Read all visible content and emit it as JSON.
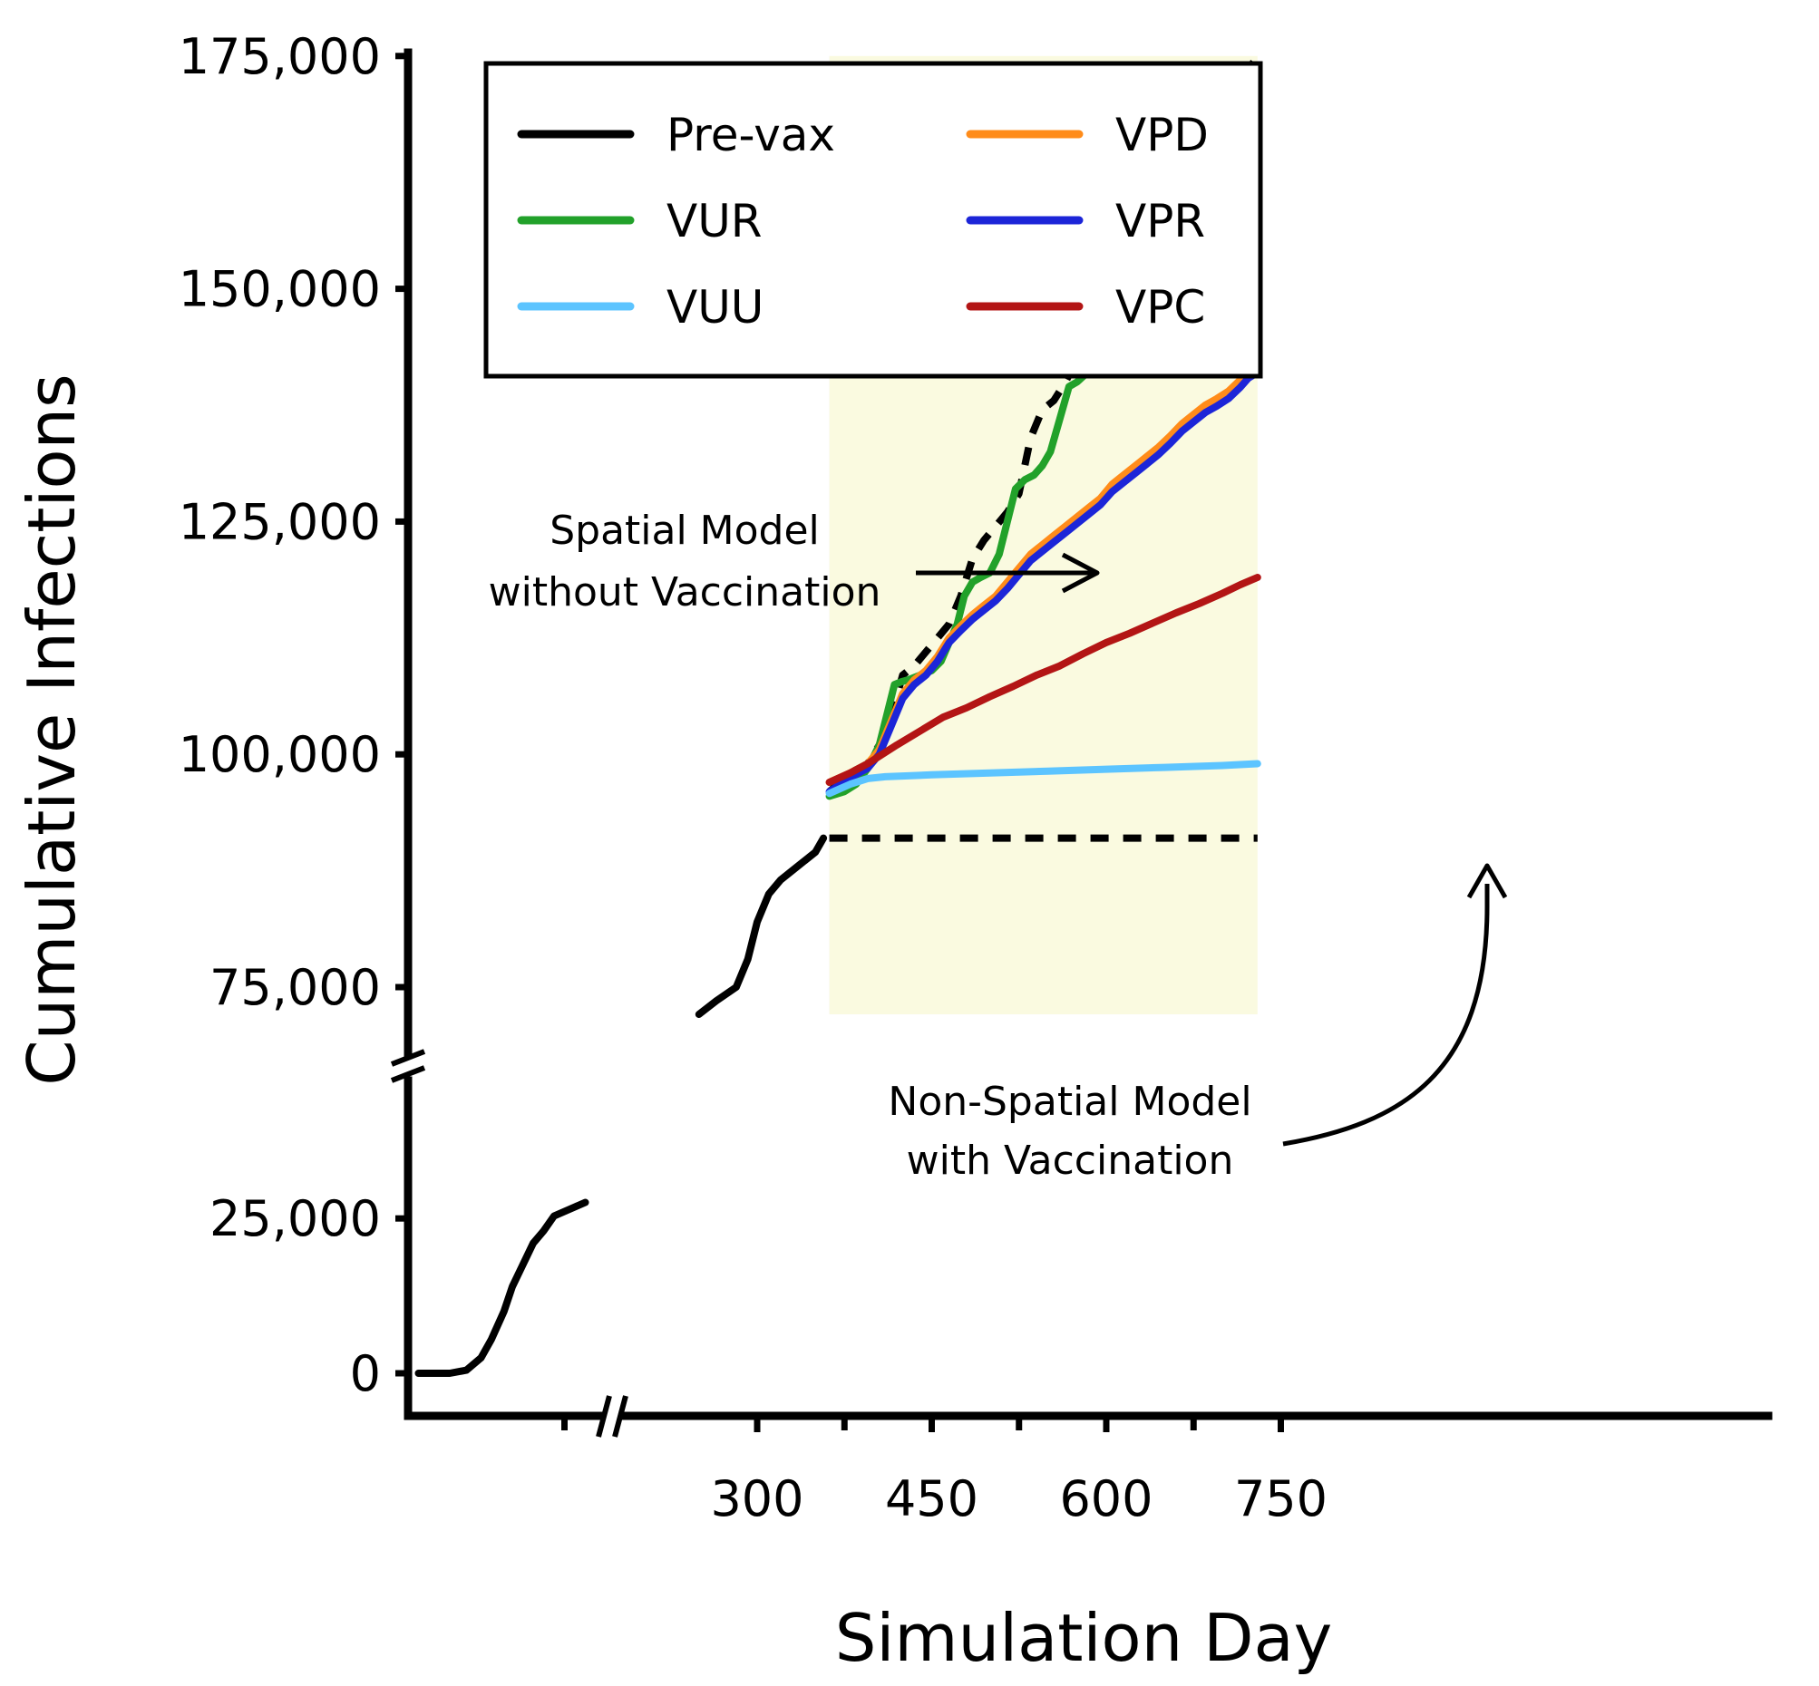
{
  "chart_data": {
    "type": "line",
    "xlabel": "Simulation Day",
    "ylabel": "Cumulative Infections",
    "x_ticks": [
      300,
      450,
      600,
      750
    ],
    "x_tick_labels": [
      "300",
      "450",
      "600",
      "750"
    ],
    "x_minor_ticks": [
      225,
      375,
      525,
      675
    ],
    "xlim": [
      150,
      750
    ],
    "x_axis_break": true,
    "y_ticks": [
      0,
      25000,
      75000,
      100000,
      125000,
      150000,
      175000
    ],
    "y_tick_labels": [
      "0",
      "25,000",
      "75,000",
      "100,000",
      "125,000",
      "150,000",
      "175,000"
    ],
    "y_axis_break": true,
    "y_break_between": [
      25000,
      75000
    ],
    "shaded_region": {
      "color": "#fafae0",
      "x_range": [
        362,
        730
      ],
      "y_range": [
        70000,
        175000
      ]
    },
    "series": [
      {
        "name": "Pre-vax",
        "color": "#000000",
        "style": "solid",
        "x": [
          155,
          170,
          178,
          185,
          190,
          196,
          200,
          210,
          215,
          220,
          225,
          230,
          235
        ],
        "y": [
          0,
          0,
          500,
          2500,
          5500,
          10000,
          14000,
          21000,
          23000,
          25500,
          26500,
          27500,
          28500
        ]
      },
      {
        "name": "Pre-vax (continued)",
        "color": "#000000",
        "style": "solid",
        "x": [
          250,
          265,
          282,
          292,
          300,
          310,
          320,
          335,
          350,
          357
        ],
        "y": [
          70000,
          73000,
          75000,
          78000,
          82000,
          85000,
          86500,
          88000,
          89500,
          91000
        ]
      },
      {
        "name": "Spatial Model without Vaccination",
        "color": "#000000",
        "style": "dashed",
        "x": [
          362,
          380,
          395,
          405,
          415,
          425,
          435,
          445,
          455,
          465,
          475,
          485,
          495,
          505,
          515,
          525,
          535,
          545,
          555,
          565,
          575,
          585,
          595,
          605,
          615,
          625,
          635,
          645,
          655,
          665,
          675,
          685,
          695,
          705,
          715,
          722,
          730
        ],
        "y": [
          96000,
          98000,
          99000,
          101000,
          104000,
          108500,
          109500,
          111000,
          112500,
          114000,
          117000,
          121000,
          123000,
          124500,
          126000,
          128000,
          134000,
          137000,
          138000,
          140000,
          142500,
          147500,
          148500,
          150000,
          151500,
          152500,
          154000,
          157500,
          161500,
          163000,
          164000,
          165000,
          167000,
          169500,
          171500,
          173500,
          175000
        ]
      },
      {
        "name": "Non-Spatial Model with Vaccination",
        "color": "#000000",
        "style": "dashed",
        "x": [
          362,
          730
        ],
        "y": [
          91000,
          91000
        ]
      },
      {
        "name": "VUR",
        "color": "#22a12a",
        "style": "solid",
        "x": [
          362,
          375,
          385,
          395,
          405,
          412,
          418,
          424,
          430,
          440,
          450,
          458,
          465,
          472,
          478,
          485,
          492,
          500,
          508,
          515,
          522,
          530,
          538,
          545,
          552,
          560,
          568,
          575,
          582,
          590,
          598,
          605,
          612,
          620,
          628,
          635,
          642,
          650,
          658,
          665,
          672,
          680,
          688,
          695,
          702,
          710,
          718,
          724,
          730
        ],
        "y": [
          95500,
          96000,
          96800,
          98500,
          101000,
          104500,
          107500,
          107800,
          108000,
          108500,
          109000,
          110000,
          112000,
          114000,
          117000,
          118500,
          119000,
          119500,
          121500,
          125000,
          128500,
          129500,
          130000,
          131000,
          132500,
          136000,
          139500,
          140000,
          140800,
          142000,
          144000,
          147000,
          149500,
          150000,
          150500,
          151500,
          153000,
          156000,
          158500,
          159500,
          160000,
          160500,
          161000,
          162000,
          164000,
          166500,
          168500,
          170000,
          170200
        ]
      },
      {
        "name": "VPD",
        "color": "#ff8c1a",
        "style": "solid",
        "x": [
          362,
          380,
          395,
          405,
          415,
          425,
          435,
          445,
          455,
          465,
          475,
          485,
          495,
          505,
          515,
          525,
          535,
          545,
          555,
          565,
          575,
          585,
          595,
          605,
          615,
          625,
          635,
          645,
          655,
          665,
          675,
          685,
          695,
          705,
          715,
          722,
          730
        ],
        "y": [
          97000,
          98000,
          99000,
          100500,
          103500,
          106500,
          108000,
          109000,
          110500,
          112500,
          113800,
          115000,
          116000,
          117000,
          118500,
          120000,
          121500,
          122500,
          123500,
          124500,
          125500,
          126500,
          127500,
          129000,
          130000,
          131000,
          132000,
          133000,
          134200,
          135500,
          136500,
          137500,
          138200,
          139000,
          140200,
          141200,
          141800
        ]
      },
      {
        "name": "VPR",
        "color": "#1c25d8",
        "style": "solid",
        "x": [
          362,
          380,
          395,
          405,
          415,
          425,
          435,
          445,
          455,
          465,
          475,
          485,
          495,
          505,
          515,
          525,
          535,
          545,
          555,
          565,
          575,
          585,
          595,
          605,
          615,
          625,
          635,
          645,
          655,
          665,
          675,
          685,
          695,
          705,
          715,
          722,
          730
        ],
        "y": [
          96000,
          97500,
          98500,
          100000,
          103000,
          106000,
          107500,
          108500,
          110000,
          112000,
          113300,
          114500,
          115500,
          116500,
          117800,
          119300,
          120800,
          121800,
          122800,
          123800,
          124800,
          125800,
          126800,
          128200,
          129200,
          130200,
          131200,
          132200,
          133400,
          134700,
          135700,
          136700,
          137400,
          138200,
          139400,
          140400,
          141000
        ]
      },
      {
        "name": "VPC",
        "color": "#b31515",
        "style": "solid",
        "x": [
          362,
          380,
          395,
          405,
          420,
          440,
          460,
          480,
          500,
          520,
          540,
          560,
          580,
          600,
          620,
          640,
          660,
          680,
          700,
          715,
          730
        ],
        "y": [
          97000,
          98000,
          99000,
          99800,
          101000,
          102500,
          104000,
          105000,
          106200,
          107300,
          108500,
          109500,
          110800,
          112000,
          113000,
          114100,
          115200,
          116200,
          117300,
          118200,
          119000
        ]
      },
      {
        "name": "VUU",
        "color": "#5cc4ff",
        "style": "solid",
        "x": [
          362,
          380,
          395,
          410,
          450,
          500,
          550,
          600,
          650,
          700,
          730
        ],
        "y": [
          95800,
          96800,
          97400,
          97600,
          97800,
          98000,
          98200,
          98400,
          98600,
          98800,
          99000
        ]
      }
    ],
    "legend": {
      "placement": "top-left",
      "entries": [
        {
          "label": "Pre-vax",
          "color": "#000000"
        },
        {
          "label": "VPD",
          "color": "#ff8c1a"
        },
        {
          "label": "VUR",
          "color": "#22a12a"
        },
        {
          "label": "VPR",
          "color": "#1c25d8"
        },
        {
          "label": "VUU",
          "color": "#5cc4ff"
        },
        {
          "label": "VPC",
          "color": "#b31515"
        }
      ]
    },
    "annotations": [
      {
        "lines": [
          "Spatial Model",
          "without Vaccination"
        ]
      },
      {
        "lines": [
          "Non-Spatial Model",
          "with Vaccination"
        ]
      }
    ]
  }
}
